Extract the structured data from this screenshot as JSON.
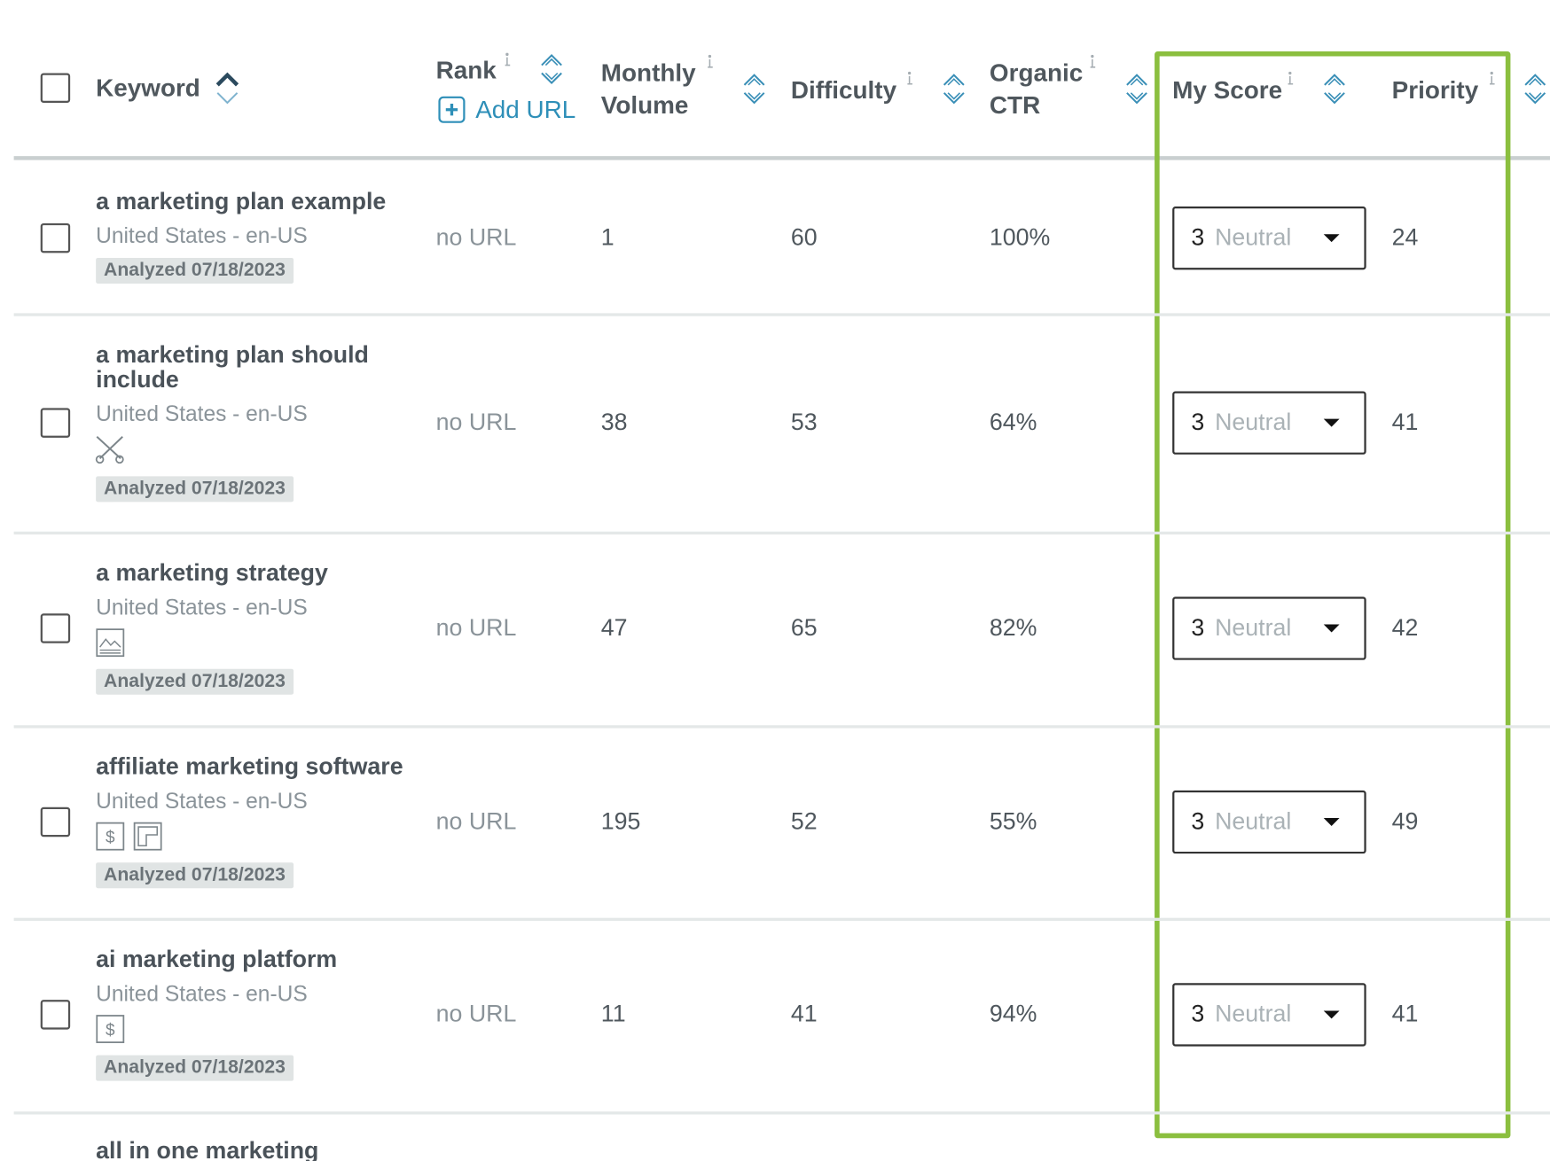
{
  "header": {
    "keyword": "Keyword",
    "rank": "Rank",
    "add_url": "Add URL",
    "monthly_volume": "Monthly Volume",
    "difficulty": "Difficulty",
    "organic_ctr": "Organic CTR",
    "my_score": "My Score",
    "priority": "Priority"
  },
  "rows": [
    {
      "keyword": "a marketing plan example",
      "location": "United States - en-US",
      "analyzed": "Analyzed 07/18/2023",
      "rank": "no URL",
      "volume": "1",
      "difficulty": "60",
      "ctr": "100%",
      "score": "3",
      "score_label": "Neutral",
      "priority": "24"
    },
    {
      "keyword": "a marketing plan should include",
      "location": "United States - en-US",
      "analyzed": "Analyzed 07/18/2023",
      "rank": "no URL",
      "volume": "38",
      "difficulty": "53",
      "ctr": "64%",
      "score": "3",
      "score_label": "Neutral",
      "priority": "41"
    },
    {
      "keyword": "a marketing strategy",
      "location": "United States - en-US",
      "analyzed": "Analyzed 07/18/2023",
      "rank": "no URL",
      "volume": "47",
      "difficulty": "65",
      "ctr": "82%",
      "score": "3",
      "score_label": "Neutral",
      "priority": "42"
    },
    {
      "keyword": "affiliate marketing software",
      "location": "United States - en-US",
      "analyzed": "Analyzed 07/18/2023",
      "rank": "no URL",
      "volume": "195",
      "difficulty": "52",
      "ctr": "55%",
      "score": "3",
      "score_label": "Neutral",
      "priority": "49"
    },
    {
      "keyword": "ai marketing platform",
      "location": "United States - en-US",
      "analyzed": "Analyzed 07/18/2023",
      "rank": "no URL",
      "volume": "11",
      "difficulty": "41",
      "ctr": "94%",
      "score": "3",
      "score_label": "Neutral",
      "priority": "41"
    },
    {
      "keyword": "all in one marketing"
    }
  ]
}
